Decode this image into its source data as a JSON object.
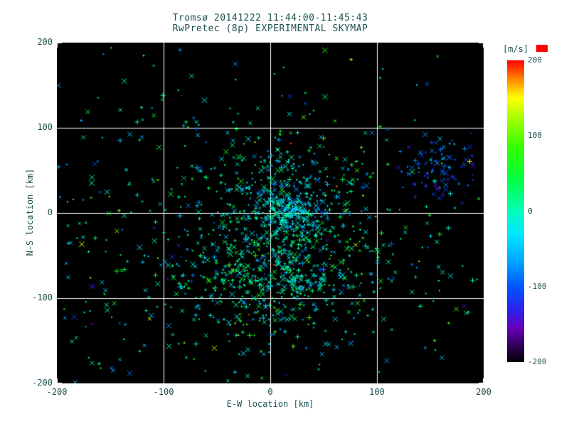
{
  "page": {
    "background": "#ffffff"
  },
  "chart_data": {
    "type": "scatter",
    "title": "Tromsø 20141222 11:44:00-11:45:43",
    "subtitle": "RwPretec (8p) EXPERIMENTAL SKYMAP",
    "xlabel": "E-W location [km]",
    "ylabel": "N-S location [km]",
    "xlim": [
      -200,
      200
    ],
    "ylim": [
      -200,
      200
    ],
    "xticks": [
      -200,
      -100,
      0,
      100,
      200
    ],
    "yticks": [
      200,
      100,
      0,
      -100,
      -200
    ],
    "grid_lines": [
      -100,
      0,
      100
    ],
    "grid": true,
    "plot_bg": "#000000",
    "grid_color": "#ffffff",
    "text_color": "#1c4f4f",
    "legend_position": "right-colorbar",
    "colorbar": {
      "label": "[m/s]",
      "min": -200,
      "max": 200,
      "ticks": [
        200,
        100,
        0,
        -100,
        -200
      ],
      "palette": [
        {
          "v": -200,
          "color": "#000000"
        },
        {
          "v": -180,
          "color": "#2a0050"
        },
        {
          "v": -155,
          "color": "#6600bb"
        },
        {
          "v": -130,
          "color": "#2a22ee"
        },
        {
          "v": -100,
          "color": "#0055ff"
        },
        {
          "v": -65,
          "color": "#00aaff"
        },
        {
          "v": -30,
          "color": "#00e8ff"
        },
        {
          "v": 0,
          "color": "#00ffbb"
        },
        {
          "v": 40,
          "color": "#00ff44"
        },
        {
          "v": 85,
          "color": "#33ff00"
        },
        {
          "v": 125,
          "color": "#aaff00"
        },
        {
          "v": 150,
          "color": "#ffff00"
        },
        {
          "v": 175,
          "color": "#ff8800"
        },
        {
          "v": 200,
          "color": "#ff0000"
        }
      ]
    },
    "marker_shapes": [
      "x",
      "plus",
      "dot"
    ],
    "data_representation": "point cloud approximated by seeded random clusters (velocity-colored echoes)",
    "seed": 20141222,
    "clusters": [
      {
        "name": "lower-central-dense",
        "cx": 5,
        "cy": -62,
        "sx": 42,
        "sy": 38,
        "count": 650,
        "v_mean": -5,
        "v_spread": 45,
        "outlier_prob": 0.03
      },
      {
        "name": "center-cyan-knot",
        "cx": 18,
        "cy": 2,
        "sx": 14,
        "sy": 12,
        "count": 180,
        "v_mean": -35,
        "v_spread": 25,
        "outlier_prob": 0.01
      },
      {
        "name": "center-upper-spread",
        "cx": 10,
        "cy": 32,
        "sx": 36,
        "sy": 30,
        "count": 210,
        "v_mean": -20,
        "v_spread": 40,
        "outlier_prob": 0.02
      },
      {
        "name": "northeast-blue",
        "cx": 158,
        "cy": 52,
        "sx": 24,
        "sy": 18,
        "count": 95,
        "v_mean": -105,
        "v_spread": 35,
        "outlier_prob": 0.02
      },
      {
        "name": "wide-background",
        "cx": -20,
        "cy": -30,
        "sx": 120,
        "sy": 110,
        "count": 520,
        "v_mean": -10,
        "v_spread": 55,
        "outlier_prob": 0.05
      },
      {
        "name": "left-sparse-outliers",
        "cx": -150,
        "cy": -40,
        "sx": 45,
        "sy": 95,
        "count": 45,
        "v_mean": 0,
        "v_spread": 110,
        "outlier_prob": 0.18
      }
    ]
  }
}
